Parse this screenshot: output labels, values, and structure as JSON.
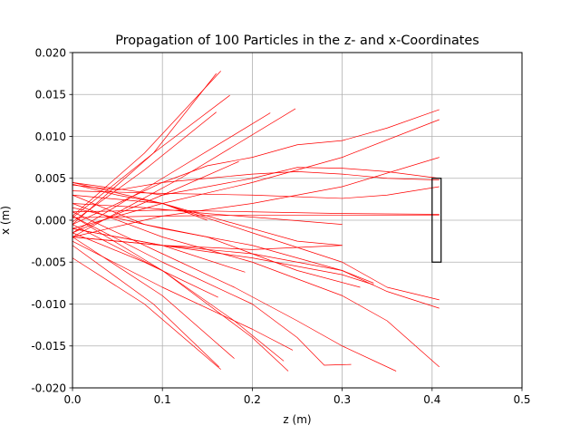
{
  "chart_data": {
    "type": "line",
    "title": "Propagation of 100 Particles in the z- and x-Coordinates",
    "xlabel": "z (m)",
    "ylabel": "x (m)",
    "xlim": [
      0,
      0.5
    ],
    "ylim": [
      -0.02,
      0.02
    ],
    "xticks": [
      "0.0",
      "0.1",
      "0.2",
      "0.3",
      "0.4",
      "0.5"
    ],
    "yticks": [
      "-0.020",
      "-0.015",
      "-0.010",
      "-0.005",
      "0.000",
      "0.005",
      "0.010",
      "0.015",
      "0.020"
    ],
    "grid": true,
    "line_color": "#ff0000",
    "detector": {
      "z": [
        0.4,
        0.41
      ],
      "x": [
        -0.005,
        0.005
      ],
      "color": "#000000"
    },
    "series": [
      {
        "x": [
          0,
          0.08,
          0.165
        ],
        "y": [
          0.0005,
          0.008,
          0.0178
        ]
      },
      {
        "x": [
          0,
          0.09,
          0.16
        ],
        "y": [
          -0.0005,
          0.008,
          0.0175
        ]
      },
      {
        "x": [
          0,
          0.09,
          0.175
        ],
        "y": [
          0.0003,
          0.008,
          0.0149
        ]
      },
      {
        "x": [
          0,
          0.08,
          0.16
        ],
        "y": [
          -0.0002,
          0.006,
          0.0129
        ]
      },
      {
        "x": [
          0,
          0.1,
          0.22
        ],
        "y": [
          -0.0015,
          0.005,
          0.0128
        ]
      },
      {
        "x": [
          0,
          0.12,
          0.248
        ],
        "y": [
          -0.002,
          0.005,
          0.0133
        ]
      },
      {
        "x": [
          0,
          0.1,
          0.185
        ],
        "y": [
          -0.0015,
          0.003,
          0.007
        ]
      },
      {
        "x": [
          0,
          0.05,
          0.1,
          0.15,
          0.2,
          0.25,
          0.3,
          0.35,
          0.408
        ],
        "y": [
          -0.0005,
          0.002,
          0.0045,
          0.0065,
          0.0075,
          0.009,
          0.0095,
          0.011,
          0.0132
        ]
      },
      {
        "x": [
          0,
          0.1,
          0.2,
          0.3,
          0.408
        ],
        "y": [
          -0.001,
          0.002,
          0.0045,
          0.0075,
          0.012
        ]
      },
      {
        "x": [
          0,
          0.1,
          0.2,
          0.3,
          0.408
        ],
        "y": [
          -0.002,
          0.0005,
          0.002,
          0.004,
          0.0075
        ]
      },
      {
        "x": [
          0,
          0.1,
          0.2,
          0.25,
          0.3,
          0.35,
          0.408
        ],
        "y": [
          0.0045,
          0.003,
          0.005,
          0.0063,
          0.0062,
          0.0058,
          0.005
        ]
      },
      {
        "x": [
          0,
          0.05,
          0.1,
          0.15,
          0.2,
          0.25,
          0.3,
          0.35,
          0.408
        ],
        "y": [
          0.0042,
          0.0036,
          0.0045,
          0.005,
          0.0055,
          0.0058,
          0.0055,
          0.005,
          0.0048
        ]
      },
      {
        "x": [
          0,
          0.1,
          0.2,
          0.3,
          0.35,
          0.408
        ],
        "y": [
          0.0035,
          0.0032,
          0.003,
          0.0026,
          0.003,
          0.004
        ]
      },
      {
        "x": [
          0,
          0.1,
          0.2,
          0.3,
          0.408
        ],
        "y": [
          0.001,
          0.0012,
          0.001,
          0.0008,
          0.0007
        ]
      },
      {
        "x": [
          0,
          0.1,
          0.2,
          0.3,
          0.408
        ],
        "y": [
          0.0003,
          0.0005,
          0.0006,
          0.0006,
          0.0006
        ]
      },
      {
        "x": [
          0,
          0.08,
          0.15,
          0.22,
          0.3
        ],
        "y": [
          0.002,
          0.0015,
          0.0008,
          0.0002,
          -0.0005
        ]
      },
      {
        "x": [
          0,
          0.1,
          0.2,
          0.25,
          0.3
        ],
        "y": [
          0.003,
          0.002,
          -0.001,
          -0.0025,
          -0.003
        ]
      },
      {
        "x": [
          0,
          0.1,
          0.2,
          0.3,
          0.35,
          0.408
        ],
        "y": [
          0.0045,
          0.002,
          -0.0015,
          -0.005,
          -0.008,
          -0.0095
        ]
      },
      {
        "x": [
          0,
          0.1,
          0.2,
          0.3,
          0.35,
          0.408
        ],
        "y": [
          0.0015,
          -0.001,
          -0.003,
          -0.006,
          -0.0085,
          -0.0105
        ]
      },
      {
        "x": [
          0,
          0.1,
          0.2,
          0.3,
          0.35,
          0.408
        ],
        "y": [
          0.002,
          -0.002,
          -0.005,
          -0.009,
          -0.012,
          -0.0175
        ]
      },
      {
        "x": [
          0,
          0.1,
          0.18,
          0.25,
          0.3,
          0.36
        ],
        "y": [
          0.001,
          -0.004,
          -0.008,
          -0.012,
          -0.015,
          -0.018
        ]
      },
      {
        "x": [
          0,
          0.1,
          0.2,
          0.25,
          0.28,
          0.31
        ],
        "y": [
          0.0005,
          -0.005,
          -0.01,
          -0.014,
          -0.0173,
          -0.0172
        ]
      },
      {
        "x": [
          0,
          0.08,
          0.15,
          0.2,
          0.25,
          0.32
        ],
        "y": [
          0.003,
          -0.0005,
          -0.002,
          -0.004,
          -0.006,
          -0.008
        ]
      },
      {
        "x": [
          0,
          0.1,
          0.2,
          0.3,
          0.335
        ],
        "y": [
          -0.001,
          -0.003,
          -0.0045,
          -0.0065,
          -0.0077
        ]
      },
      {
        "x": [
          0,
          0.1,
          0.2,
          0.3,
          0.335
        ],
        "y": [
          -0.002,
          -0.003,
          -0.004,
          -0.006,
          -0.0075
        ]
      },
      {
        "x": [
          0,
          0.1,
          0.192
        ],
        "y": [
          -0.001,
          -0.003,
          -0.0062
        ]
      },
      {
        "x": [
          0,
          0.08,
          0.162
        ],
        "y": [
          -0.0015,
          -0.005,
          -0.0092
        ]
      },
      {
        "x": [
          0,
          0.1,
          0.2,
          0.24
        ],
        "y": [
          0.0005,
          -0.006,
          -0.014,
          -0.018
        ]
      },
      {
        "x": [
          0,
          0.1,
          0.18,
          0.235
        ],
        "y": [
          -0.0005,
          -0.006,
          -0.012,
          -0.0168
        ]
      },
      {
        "x": [
          0,
          0.08,
          0.165
        ],
        "y": [
          -0.0045,
          -0.01,
          -0.0178
        ]
      },
      {
        "x": [
          0,
          0.09,
          0.163
        ],
        "y": [
          -0.003,
          -0.01,
          -0.0175
        ]
      },
      {
        "x": [
          0,
          0.1,
          0.18
        ],
        "y": [
          -0.002,
          -0.009,
          -0.0165
        ]
      },
      {
        "x": [
          0,
          0.1,
          0.2,
          0.245
        ],
        "y": [
          -0.0025,
          -0.008,
          -0.013,
          -0.0155
        ]
      },
      {
        "x": [
          0,
          0.1,
          0.2,
          0.3
        ],
        "y": [
          -0.002,
          -0.003,
          -0.0035,
          -0.003
        ]
      },
      {
        "x": [
          0,
          0.05,
          0.1,
          0.15
        ],
        "y": [
          0.0043,
          0.003,
          0.002,
          0.0
        ]
      }
    ]
  }
}
